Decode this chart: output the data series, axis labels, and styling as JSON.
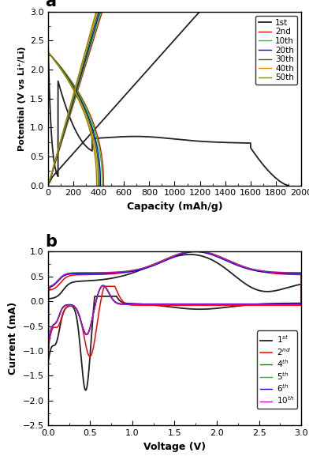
{
  "panel_a": {
    "xlabel": "Capacity (mAh/g)",
    "ylabel": "Potential (V vs Li⁺/Li)",
    "xlim": [
      0,
      2000
    ],
    "ylim": [
      0,
      3.0
    ],
    "xticks": [
      0,
      200,
      400,
      600,
      800,
      1000,
      1200,
      1400,
      1600,
      1800,
      2000
    ],
    "yticks": [
      0.0,
      0.5,
      1.0,
      1.5,
      2.0,
      2.5,
      3.0
    ],
    "cycles": [
      "1st",
      "2nd",
      "10th",
      "20th",
      "30th",
      "40th",
      "50th"
    ],
    "colors": [
      "#222222",
      "#ff0000",
      "#00dd00",
      "#0000ff",
      "#007700",
      "#ff8800",
      "#888800"
    ]
  },
  "panel_b": {
    "xlabel": "Voltage (V)",
    "ylabel": "Current (mA)",
    "xlim": [
      0,
      3.0
    ],
    "ylim": [
      -2.5,
      1.0
    ],
    "xticks": [
      0.0,
      0.5,
      1.0,
      1.5,
      2.0,
      2.5,
      3.0
    ],
    "yticks": [
      -2.5,
      -2.0,
      -1.5,
      -1.0,
      -0.5,
      0.0,
      0.5,
      1.0
    ],
    "legend_labels": [
      "1$^{st}$",
      "2$^{nd}$",
      "4$^{th}$",
      "5$^{th}$",
      "6$^{th}$",
      "10$^{th}$"
    ],
    "colors": [
      "#222222",
      "#ff0000",
      "#008800",
      "#00cc00",
      "#0000cc",
      "#cc00cc"
    ]
  }
}
